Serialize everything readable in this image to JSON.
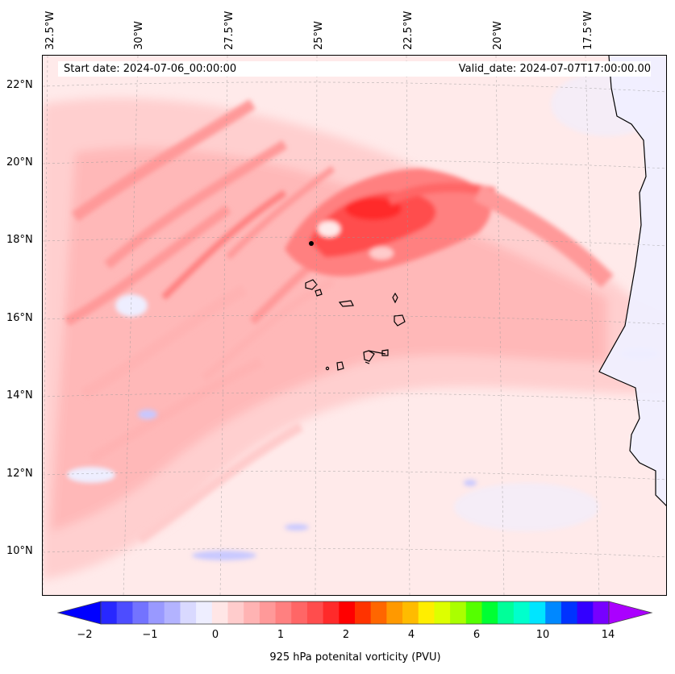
{
  "map": {
    "start_date": "Start date: 2024-07-06_00:00:00",
    "valid_date": "Valid_date: 2024-07-07T17:00:00.00",
    "longitude_labels": [
      "32.5°W",
      "30°W",
      "27.5°W",
      "25°W",
      "22.5°W",
      "20°W",
      "17.5°W"
    ],
    "latitude_labels": [
      "22°N",
      "20°N",
      "18°N",
      "16°N",
      "14°N",
      "12°N",
      "10°N"
    ]
  },
  "colorbar": {
    "label": "925 hPa potenital vorticity (PVU)",
    "ticks": [
      "−2",
      "−1",
      "0",
      "1",
      "2",
      "4",
      "6",
      "10",
      "14"
    ],
    "colors": [
      "#0000ff",
      "#2828ff",
      "#4d4dff",
      "#7373ff",
      "#9999ff",
      "#b3b3ff",
      "#d9d9ff",
      "#eeeeff",
      "#ffe6e6",
      "#ffcccc",
      "#ffb3b3",
      "#ff9999",
      "#ff8080",
      "#ff6666",
      "#ff4d4d",
      "#ff2a2a",
      "#ff0000",
      "#ff3300",
      "#ff6600",
      "#ff9900",
      "#ffbb00",
      "#ffee00",
      "#ddff00",
      "#aaff00",
      "#55ff00",
      "#00ff33",
      "#00ff99",
      "#00ffcc",
      "#00e5ff",
      "#0088ff",
      "#0033ff",
      "#3300ff",
      "#7700ff",
      "#aa00ff"
    ]
  }
}
